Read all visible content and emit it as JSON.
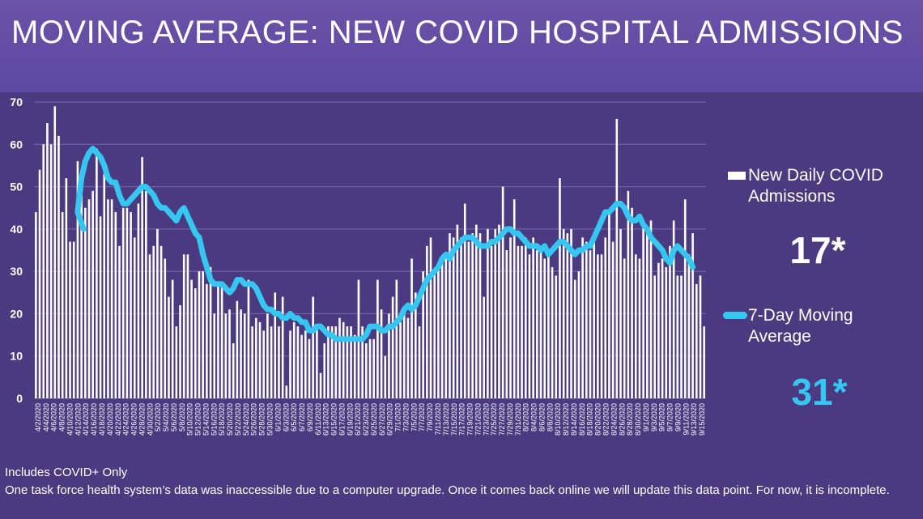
{
  "header": {
    "title": "MOVING AVERAGE: NEW COVID HOSPITAL ADMISSIONS"
  },
  "colors": {
    "bar": "#ffffff",
    "line": "#35c7f2",
    "grid": "#7a6bab",
    "background": "#4b3a80"
  },
  "legend": {
    "bars_label": "New Daily COVID Admissions",
    "line_label": "7-Day Moving Average"
  },
  "stats": {
    "latest_daily": "17*",
    "latest_average": "31*"
  },
  "notes": {
    "line1": "Includes COVID+ Only",
    "line2": "One task force health system’s data was inaccessible due to a computer upgrade. Once it comes back online we will update this data point. For now, it is incomplete."
  },
  "chart_data": {
    "type": "bar",
    "title": "",
    "xlabel": "",
    "ylabel": "",
    "ylim": [
      0,
      70
    ],
    "yticks": [
      0,
      10,
      20,
      30,
      40,
      50,
      60,
      70
    ],
    "grid": true,
    "legend_position": "right",
    "x_tick_labels": [
      "4/2/2020",
      "4/4/2020",
      "4/6/2020",
      "4/8/2020",
      "4/10/2020",
      "4/12/2020",
      "4/14/2020",
      "4/16/2020",
      "4/18/2020",
      "4/20/2020",
      "4/22/2020",
      "4/24/2020",
      "4/26/2020",
      "4/28/2020",
      "4/30/2020",
      "5/2/2020",
      "5/4/2020",
      "5/6/2020",
      "5/8/2020",
      "5/10/2020",
      "5/12/2020",
      "5/14/2020",
      "5/16/2020",
      "5/18/2020",
      "5/20/2020",
      "5/22/2020",
      "5/24/2020",
      "5/26/2020",
      "5/28/2020",
      "5/30/2020",
      "6/1/2020",
      "6/3/2020",
      "6/5/2020",
      "6/7/2020",
      "6/9/2020",
      "6/11/2020",
      "6/13/2020",
      "6/15/2020",
      "6/17/2020",
      "6/19/2020",
      "6/21/2020",
      "6/23/2020",
      "6/25/2020",
      "6/27/2020",
      "6/29/2020",
      "7/1/2020",
      "7/3/2020",
      "7/5/2020",
      "7/7/2020",
      "7/9/2020",
      "7/11/2020",
      "7/13/2020",
      "7/15/2020",
      "7/17/2020",
      "7/19/2020",
      "7/21/2020",
      "7/23/2020",
      "7/25/2020",
      "7/27/2020",
      "7/29/2020",
      "7/31/2020",
      "8/2/2020",
      "8/4/2020",
      "8/6/2020",
      "8/8/2020",
      "8/10/2020",
      "8/12/2020",
      "8/14/2020",
      "8/16/2020",
      "8/18/2020",
      "8/20/2020",
      "8/22/2020",
      "8/24/2020",
      "8/26/2020",
      "8/28/2020",
      "8/30/2020",
      "9/1/2020",
      "9/3/2020",
      "9/5/2020",
      "9/7/2020",
      "9/9/2020",
      "9/11/2020",
      "9/13/2020",
      "9/15/2020"
    ],
    "series": [
      {
        "name": "New Daily COVID Admissions",
        "type": "bar",
        "values": [
          44,
          54,
          60,
          65,
          60,
          69,
          62,
          44,
          52,
          37,
          37,
          56,
          48,
          45,
          47,
          49,
          59,
          43,
          53,
          47,
          47,
          44,
          36,
          45,
          45,
          44,
          38,
          46,
          57,
          49,
          34,
          36,
          40,
          36,
          33,
          24,
          28,
          17,
          22,
          34,
          34,
          28,
          26,
          30,
          30,
          27,
          31,
          20,
          27,
          27,
          20,
          21,
          13,
          23,
          21,
          20,
          28,
          17,
          19,
          18,
          16,
          20,
          17,
          25,
          17,
          24,
          3,
          16,
          18,
          17,
          15,
          16,
          14,
          24,
          17,
          6,
          13,
          17,
          17,
          17,
          19,
          18,
          17,
          17,
          15,
          28,
          17,
          13,
          14,
          14,
          28,
          21,
          10,
          20,
          24,
          28,
          18,
          20,
          19,
          33,
          25,
          17,
          30,
          36,
          38,
          30,
          32,
          33,
          33,
          39,
          38,
          41,
          38,
          46,
          37,
          39,
          41,
          39,
          24,
          40,
          36,
          40,
          41,
          50,
          35,
          38,
          47,
          36,
          36,
          38,
          34,
          38,
          35,
          36,
          33,
          34,
          31,
          29,
          52,
          40,
          39,
          40,
          28,
          30,
          38,
          37,
          35,
          37,
          34,
          34,
          38,
          44,
          37,
          66,
          40,
          33,
          49,
          45,
          34,
          33,
          41,
          40,
          42,
          29,
          32,
          33,
          31,
          36,
          42,
          29,
          29,
          47,
          34,
          39,
          27,
          29,
          17
        ]
      },
      {
        "name": "7-Day Moving Average",
        "type": "line",
        "values": [
          40,
          44,
          52,
          56,
          58,
          59,
          58,
          57,
          55,
          52,
          51,
          51,
          48,
          46,
          46,
          47,
          48,
          49,
          50,
          50,
          49,
          48,
          46,
          45,
          45,
          44,
          43,
          42,
          44,
          45,
          43,
          41,
          39,
          38,
          34,
          31,
          28,
          27,
          27,
          27,
          26,
          25,
          26,
          28,
          28,
          27,
          27,
          27,
          26,
          24,
          22,
          21,
          21,
          20,
          20,
          19,
          19,
          20,
          19,
          19,
          18,
          18,
          16,
          16,
          17,
          17,
          16,
          15,
          15,
          14,
          14,
          14,
          14,
          14,
          14,
          14,
          14,
          15,
          17,
          17,
          17,
          16,
          16,
          17,
          17,
          18,
          19,
          21,
          22,
          21,
          22,
          24,
          26,
          28,
          29,
          30,
          31,
          33,
          34,
          33,
          35,
          36,
          37,
          38,
          38,
          38,
          37,
          36,
          36,
          36,
          37,
          37,
          38,
          39,
          40,
          40,
          39,
          39,
          38,
          37,
          36,
          36,
          36,
          35,
          36,
          34,
          35,
          36,
          37,
          37,
          36,
          35,
          34,
          35,
          35,
          36,
          36,
          38,
          40,
          42,
          44,
          44,
          45,
          46,
          46,
          45,
          43,
          42,
          42,
          43,
          41,
          40,
          38,
          37,
          36,
          35,
          33,
          32,
          35,
          36,
          35,
          34,
          33,
          31
        ]
      }
    ]
  }
}
